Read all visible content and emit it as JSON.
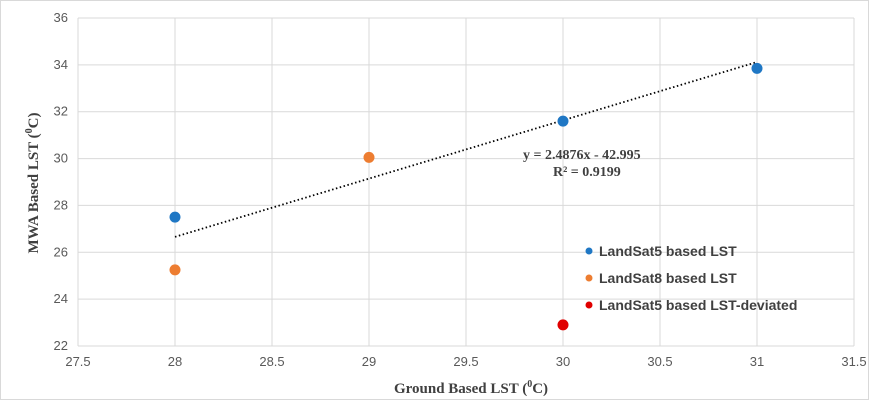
{
  "chart_data": {
    "type": "scatter",
    "title": "",
    "xlabel_main": "Ground Based LST (",
    "xlabel_sup": "0",
    "xlabel_end": "C)",
    "ylabel_main": "MWA Based LST (",
    "ylabel_sup": "0",
    "ylabel_end": "C)",
    "xlim": [
      27.5,
      31.5
    ],
    "ylim": [
      22,
      36
    ],
    "x_ticks": [
      "27.5",
      "28",
      "28.5",
      "29",
      "29.5",
      "30",
      "30.5",
      "31",
      "31.5"
    ],
    "y_ticks": [
      "22",
      "24",
      "26",
      "28",
      "30",
      "32",
      "34",
      "36"
    ],
    "grid": true,
    "legend_position": "lower-right",
    "series": [
      {
        "name": "LandSat5 based LST",
        "color": "#1f77c4",
        "points": [
          [
            28,
            27.5
          ],
          [
            30,
            31.6
          ],
          [
            31,
            33.85
          ]
        ]
      },
      {
        "name": "LandSat8 based LST",
        "color": "#ed7d31",
        "points": [
          [
            28,
            25.25
          ],
          [
            29,
            30.05
          ]
        ]
      },
      {
        "name": "LandSat5 based LST-deviated",
        "color": "#e00000",
        "points": [
          [
            30,
            22.9
          ]
        ]
      }
    ],
    "trendline": {
      "x_range": [
        28,
        31
      ],
      "slope": 2.4876,
      "intercept": -42.995,
      "equation": "y = 2.4876x - 42.995",
      "r2": "R² = 0.9199"
    }
  }
}
